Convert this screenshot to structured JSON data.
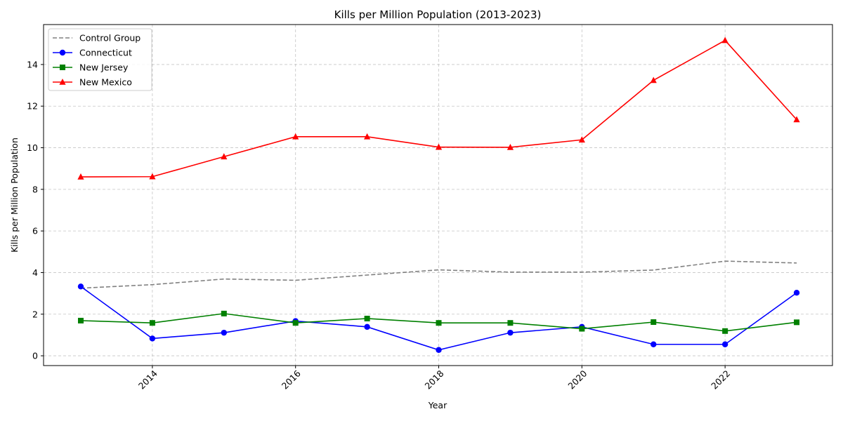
{
  "chart_data": {
    "type": "line",
    "title": "Kills per Million Population (2013-2023)",
    "xlabel": "Year",
    "ylabel": "Kills per Million Population",
    "x": [
      2013,
      2014,
      2015,
      2016,
      2017,
      2018,
      2019,
      2020,
      2021,
      2022,
      2023
    ],
    "xlim": [
      2012.48,
      2023.5
    ],
    "ylim": [
      -0.47,
      15.92
    ],
    "x_ticks": [
      2014,
      2016,
      2018,
      2020,
      2022
    ],
    "y_ticks": [
      0,
      2,
      4,
      6,
      8,
      10,
      12,
      14
    ],
    "grid": true,
    "legend_position": "top-left",
    "series": [
      {
        "name": "Control Group",
        "color": "#808080",
        "style": "dashed",
        "marker": "none",
        "values": [
          3.25,
          3.42,
          3.69,
          3.63,
          3.88,
          4.13,
          4.02,
          4.02,
          4.12,
          4.55,
          4.46
        ]
      },
      {
        "name": "Connecticut",
        "color": "#0000ff",
        "style": "solid",
        "marker": "circle",
        "values": [
          3.33,
          0.83,
          1.11,
          1.67,
          1.39,
          0.28,
          1.11,
          1.39,
          0.55,
          0.55,
          3.03
        ]
      },
      {
        "name": "New Jersey",
        "color": "#008000",
        "style": "solid",
        "marker": "square",
        "values": [
          1.69,
          1.58,
          2.03,
          1.58,
          1.79,
          1.58,
          1.58,
          1.3,
          1.62,
          1.19,
          1.61
        ]
      },
      {
        "name": "New Mexico",
        "color": "#ff0000",
        "style": "solid",
        "marker": "triangle",
        "values": [
          8.6,
          8.61,
          9.57,
          10.53,
          10.53,
          10.03,
          10.02,
          10.38,
          13.24,
          15.16,
          11.35
        ]
      }
    ]
  }
}
